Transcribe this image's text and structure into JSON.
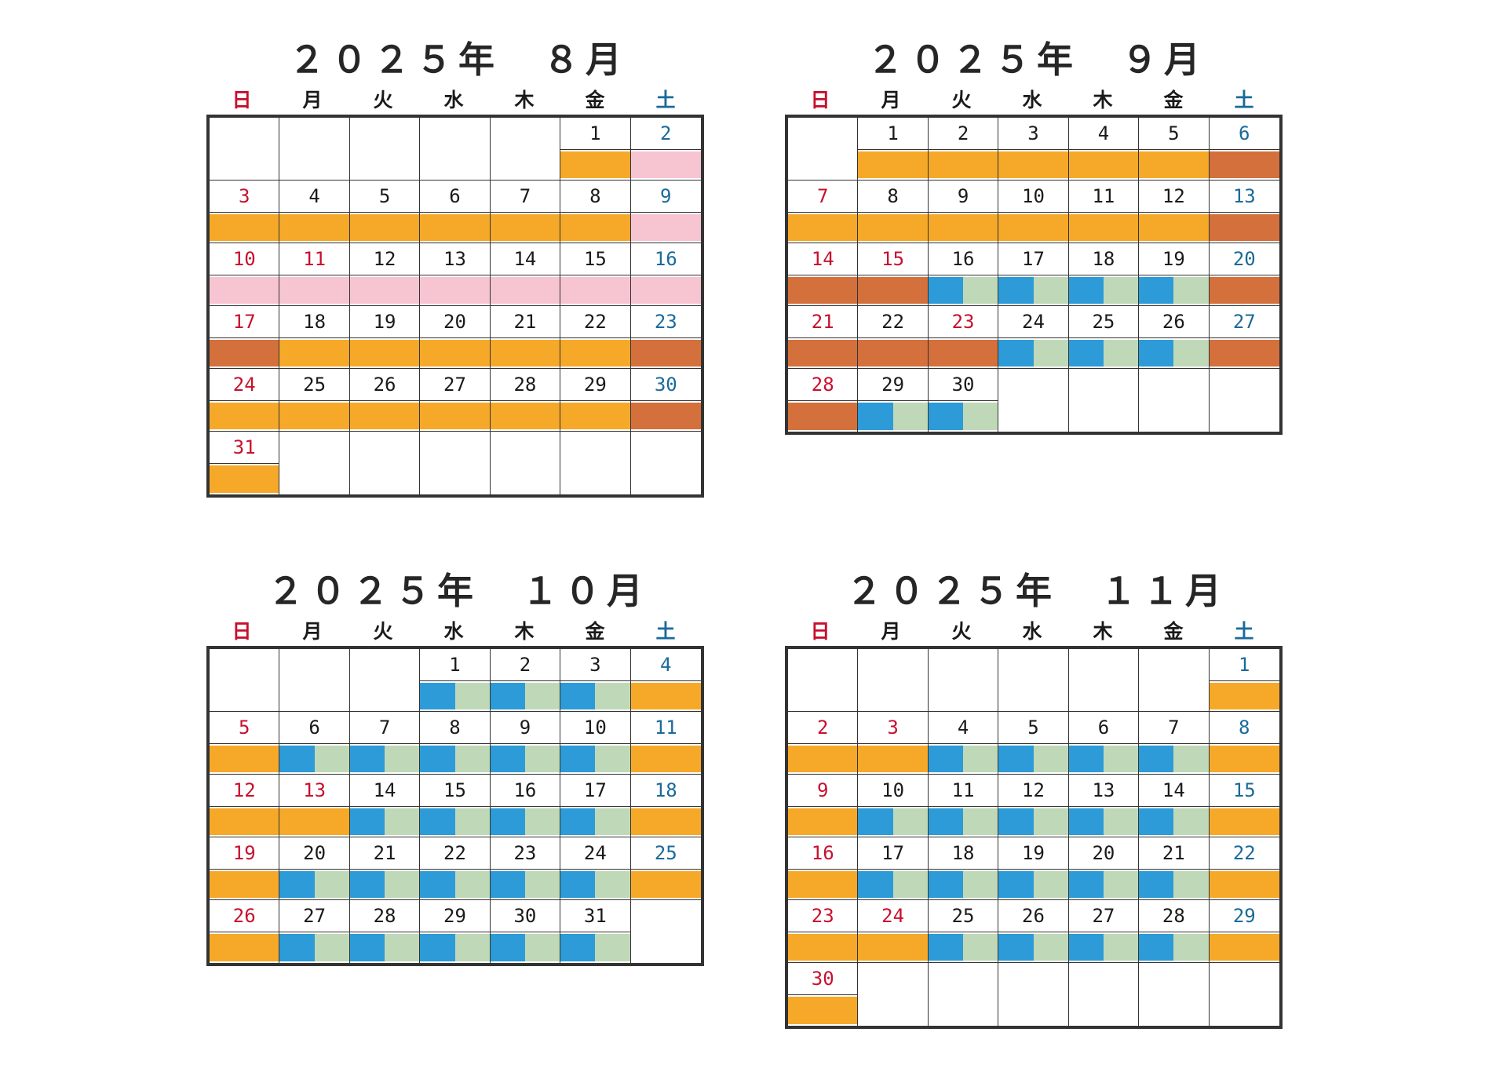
{
  "colors": {
    "sunday": "#c8102e",
    "saturday": "#1a6a9a",
    "orange": "#f6a928",
    "pink": "#f7c4d2",
    "brown": "#d4703c",
    "blue": "#2c9bd7",
    "green": "#bfd9b8"
  },
  "weekdays": [
    "日",
    "月",
    "火",
    "水",
    "木",
    "金",
    "土"
  ],
  "calendars": [
    {
      "title": "２０２５年　８月",
      "start_weekday": 5,
      "days": [
        {
          "d": "1",
          "c": "orange"
        },
        {
          "d": "2",
          "c": "pink"
        },
        {
          "d": "3",
          "c": "orange"
        },
        {
          "d": "4",
          "c": "orange"
        },
        {
          "d": "5",
          "c": "orange"
        },
        {
          "d": "6",
          "c": "orange"
        },
        {
          "d": "7",
          "c": "orange"
        },
        {
          "d": "8",
          "c": "orange"
        },
        {
          "d": "9",
          "c": "pink"
        },
        {
          "d": "10",
          "c": "pink",
          "h": true
        },
        {
          "d": "11",
          "c": "pink",
          "h": true
        },
        {
          "d": "12",
          "c": "pink"
        },
        {
          "d": "13",
          "c": "pink"
        },
        {
          "d": "14",
          "c": "pink"
        },
        {
          "d": "15",
          "c": "pink"
        },
        {
          "d": "16",
          "c": "pink"
        },
        {
          "d": "17",
          "c": "brown"
        },
        {
          "d": "18",
          "c": "orange"
        },
        {
          "d": "19",
          "c": "orange"
        },
        {
          "d": "20",
          "c": "orange"
        },
        {
          "d": "21",
          "c": "orange"
        },
        {
          "d": "22",
          "c": "orange"
        },
        {
          "d": "23",
          "c": "brown"
        },
        {
          "d": "24",
          "c": "orange"
        },
        {
          "d": "25",
          "c": "orange"
        },
        {
          "d": "26",
          "c": "orange"
        },
        {
          "d": "27",
          "c": "orange"
        },
        {
          "d": "28",
          "c": "orange"
        },
        {
          "d": "29",
          "c": "orange"
        },
        {
          "d": "30",
          "c": "brown"
        },
        {
          "d": "31",
          "c": "orange"
        }
      ]
    },
    {
      "title": "２０２５年　９月",
      "start_weekday": 1,
      "days": [
        {
          "d": "1",
          "c": "orange"
        },
        {
          "d": "2",
          "c": "orange"
        },
        {
          "d": "3",
          "c": "orange"
        },
        {
          "d": "4",
          "c": "orange"
        },
        {
          "d": "5",
          "c": "orange"
        },
        {
          "d": "6",
          "c": "brown"
        },
        {
          "d": "7",
          "c": "orange"
        },
        {
          "d": "8",
          "c": "orange"
        },
        {
          "d": "9",
          "c": "orange"
        },
        {
          "d": "10",
          "c": "orange"
        },
        {
          "d": "11",
          "c": "orange"
        },
        {
          "d": "12",
          "c": "orange"
        },
        {
          "d": "13",
          "c": "brown"
        },
        {
          "d": "14",
          "c": "brown"
        },
        {
          "d": "15",
          "c": "brown",
          "h": true
        },
        {
          "d": "16",
          "c": "bluegreen"
        },
        {
          "d": "17",
          "c": "bluegreen"
        },
        {
          "d": "18",
          "c": "bluegreen"
        },
        {
          "d": "19",
          "c": "bluegreen"
        },
        {
          "d": "20",
          "c": "brown"
        },
        {
          "d": "21",
          "c": "brown"
        },
        {
          "d": "22",
          "c": "brown"
        },
        {
          "d": "23",
          "c": "brown",
          "h": true
        },
        {
          "d": "24",
          "c": "bluegreen"
        },
        {
          "d": "25",
          "c": "bluegreen"
        },
        {
          "d": "26",
          "c": "bluegreen"
        },
        {
          "d": "27",
          "c": "brown"
        },
        {
          "d": "28",
          "c": "brown"
        },
        {
          "d": "29",
          "c": "bluegreen"
        },
        {
          "d": "30",
          "c": "bluegreen"
        }
      ]
    },
    {
      "title": "２０２５年　１０月",
      "start_weekday": 3,
      "days": [
        {
          "d": "1",
          "c": "bluegreen"
        },
        {
          "d": "2",
          "c": "bluegreen"
        },
        {
          "d": "3",
          "c": "bluegreen"
        },
        {
          "d": "4",
          "c": "orange"
        },
        {
          "d": "5",
          "c": "orange"
        },
        {
          "d": "6",
          "c": "bluegreen"
        },
        {
          "d": "7",
          "c": "bluegreen"
        },
        {
          "d": "8",
          "c": "bluegreen"
        },
        {
          "d": "9",
          "c": "bluegreen"
        },
        {
          "d": "10",
          "c": "bluegreen"
        },
        {
          "d": "11",
          "c": "orange"
        },
        {
          "d": "12",
          "c": "orange"
        },
        {
          "d": "13",
          "c": "orange",
          "h": true
        },
        {
          "d": "14",
          "c": "bluegreen"
        },
        {
          "d": "15",
          "c": "bluegreen"
        },
        {
          "d": "16",
          "c": "bluegreen"
        },
        {
          "d": "17",
          "c": "bluegreen"
        },
        {
          "d": "18",
          "c": "orange"
        },
        {
          "d": "19",
          "c": "orange"
        },
        {
          "d": "20",
          "c": "bluegreen"
        },
        {
          "d": "21",
          "c": "bluegreen"
        },
        {
          "d": "22",
          "c": "bluegreen"
        },
        {
          "d": "23",
          "c": "bluegreen"
        },
        {
          "d": "24",
          "c": "bluegreen"
        },
        {
          "d": "25",
          "c": "orange"
        },
        {
          "d": "26",
          "c": "orange"
        },
        {
          "d": "27",
          "c": "bluegreen"
        },
        {
          "d": "28",
          "c": "bluegreen"
        },
        {
          "d": "29",
          "c": "bluegreen"
        },
        {
          "d": "30",
          "c": "bluegreen"
        },
        {
          "d": "31",
          "c": "bluegreen"
        }
      ]
    },
    {
      "title": "２０２５年　１１月",
      "start_weekday": 6,
      "days": [
        {
          "d": "1",
          "c": "orange"
        },
        {
          "d": "2",
          "c": "orange"
        },
        {
          "d": "3",
          "c": "orange",
          "h": true
        },
        {
          "d": "4",
          "c": "bluegreen"
        },
        {
          "d": "5",
          "c": "bluegreen"
        },
        {
          "d": "6",
          "c": "bluegreen"
        },
        {
          "d": "7",
          "c": "bluegreen"
        },
        {
          "d": "8",
          "c": "orange"
        },
        {
          "d": "9",
          "c": "orange"
        },
        {
          "d": "10",
          "c": "bluegreen"
        },
        {
          "d": "11",
          "c": "bluegreen"
        },
        {
          "d": "12",
          "c": "bluegreen"
        },
        {
          "d": "13",
          "c": "bluegreen"
        },
        {
          "d": "14",
          "c": "bluegreen"
        },
        {
          "d": "15",
          "c": "orange"
        },
        {
          "d": "16",
          "c": "orange"
        },
        {
          "d": "17",
          "c": "bluegreen"
        },
        {
          "d": "18",
          "c": "bluegreen"
        },
        {
          "d": "19",
          "c": "bluegreen"
        },
        {
          "d": "20",
          "c": "bluegreen"
        },
        {
          "d": "21",
          "c": "bluegreen"
        },
        {
          "d": "22",
          "c": "orange"
        },
        {
          "d": "23",
          "c": "orange"
        },
        {
          "d": "24",
          "c": "orange",
          "h": true
        },
        {
          "d": "25",
          "c": "bluegreen"
        },
        {
          "d": "26",
          "c": "bluegreen"
        },
        {
          "d": "27",
          "c": "bluegreen"
        },
        {
          "d": "28",
          "c": "bluegreen"
        },
        {
          "d": "29",
          "c": "orange"
        },
        {
          "d": "30",
          "c": "orange"
        }
      ]
    }
  ]
}
